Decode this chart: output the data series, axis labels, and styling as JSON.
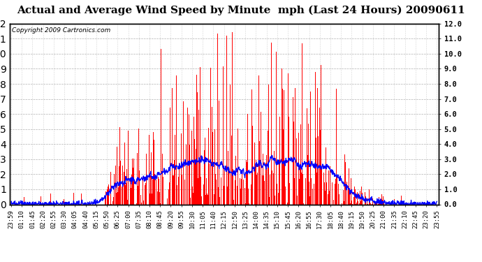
{
  "title": "Actual and Average Wind Speed by Minute  mph (Last 24 Hours) 20090611",
  "copyright": "Copyright 2009 Cartronics.com",
  "ylim": [
    0.0,
    12.0
  ],
  "yticks": [
    0.0,
    1.0,
    2.0,
    3.0,
    4.0,
    5.0,
    6.0,
    7.0,
    8.0,
    9.0,
    10.0,
    11.0,
    12.0
  ],
  "background_color": "#ffffff",
  "bar_color": "#ff0000",
  "line_color": "#0000ff",
  "grid_color": "#b0b0b0",
  "xtick_labels": [
    "23:59",
    "01:10",
    "01:45",
    "02:20",
    "02:55",
    "03:30",
    "04:05",
    "04:40",
    "05:15",
    "05:50",
    "06:25",
    "07:00",
    "07:35",
    "08:10",
    "08:45",
    "09:20",
    "09:55",
    "10:30",
    "11:05",
    "11:40",
    "12:15",
    "12:50",
    "13:25",
    "14:00",
    "14:35",
    "15:10",
    "15:45",
    "16:20",
    "16:55",
    "17:30",
    "18:05",
    "18:40",
    "19:15",
    "19:50",
    "20:25",
    "21:00",
    "21:35",
    "22:10",
    "22:45",
    "23:20",
    "23:55"
  ],
  "title_fontsize": 11,
  "copyright_fontsize": 6.5,
  "tick_fontsize": 6.5,
  "ytick_fontsize": 7.5,
  "n_points": 1440
}
